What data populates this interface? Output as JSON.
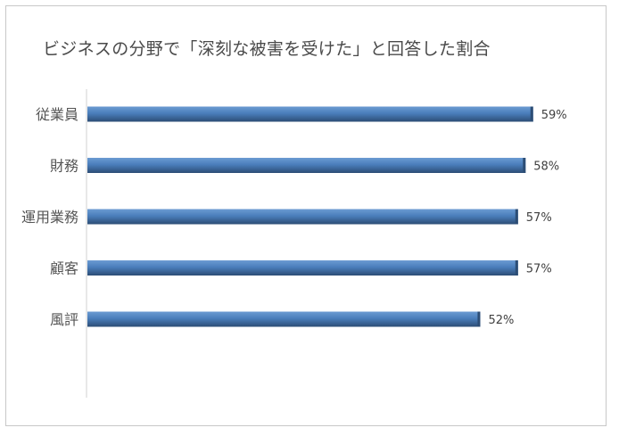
{
  "chart_data": {
    "type": "bar",
    "orientation": "horizontal",
    "title": "ビジネスの分野で「深刻な被害を受けた」と回答した割合",
    "categories": [
      "従業員",
      "財務",
      "運用業務",
      "顧客",
      "風評"
    ],
    "values": [
      59,
      58,
      57,
      57,
      52
    ],
    "data_labels": [
      "59%",
      "58%",
      "57%",
      "57%",
      "52%"
    ],
    "unit": "%",
    "xlim": [
      0,
      100
    ],
    "grid": false,
    "legend": "none",
    "colors": {
      "bar_light": "#6c9bd2",
      "bar_mid": "#4a7ebb",
      "bar_dark": "#2c4d75",
      "axis": "#d0d0d0"
    }
  }
}
